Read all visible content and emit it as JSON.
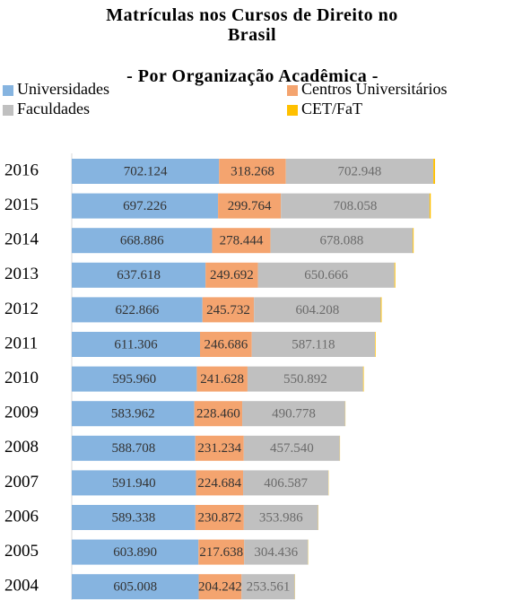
{
  "chart_data": {
    "type": "stacked-bar-horizontal",
    "title": "Matrículas nos Cursos de Direito no Brasil",
    "subtitle": "- Por Organização Acadêmica -",
    "categories": [
      "2016",
      "2015",
      "2014",
      "2013",
      "2012",
      "2011",
      "2010",
      "2009",
      "2008",
      "2007",
      "2006",
      "2005",
      "2004"
    ],
    "series": [
      {
        "name": "Universidades",
        "color": "#86b4e0",
        "values": [
          702124,
          697226,
          668886,
          637618,
          622866,
          611306,
          595960,
          583962,
          588708,
          591940,
          589338,
          603890,
          605008
        ],
        "value_labels": [
          "702.124",
          "697.226",
          "668.886",
          "637.618",
          "622.866",
          "611.306",
          "595.960",
          "583.962",
          "588.708",
          "591.940",
          "589.338",
          "603.890",
          "605.008"
        ]
      },
      {
        "name": "Centros Universitários",
        "color": "#f4a46f",
        "values": [
          318268,
          299764,
          278444,
          249692,
          245732,
          246686,
          241628,
          228460,
          231234,
          224684,
          230872,
          217638,
          204242
        ],
        "value_labels": [
          "318.268",
          "299.764",
          "278.444",
          "249.692",
          "245.732",
          "246.686",
          "241.628",
          "228.460",
          "231.234",
          "224.684",
          "230.872",
          "217.638",
          "204.242"
        ]
      },
      {
        "name": "Faculdades",
        "color": "#c0c0c0",
        "values": [
          702948,
          708058,
          678088,
          650666,
          604208,
          587118,
          550892,
          490778,
          457540,
          406587,
          353986,
          304436,
          253561
        ],
        "value_labels": [
          "702.948",
          "708.058",
          "678.088",
          "650.666",
          "604.208",
          "587.118",
          "550.892",
          "490.778",
          "457.540",
          "406.587",
          "353.986",
          "304.436",
          "253.561"
        ]
      },
      {
        "name": "CET/FaT",
        "color": "#ffc000",
        "values": [
          8000,
          6000,
          4000,
          4000,
          4000,
          3000,
          3000,
          1000,
          1000,
          1000,
          1000,
          1000,
          1000
        ]
      }
    ],
    "legend": "top"
  }
}
